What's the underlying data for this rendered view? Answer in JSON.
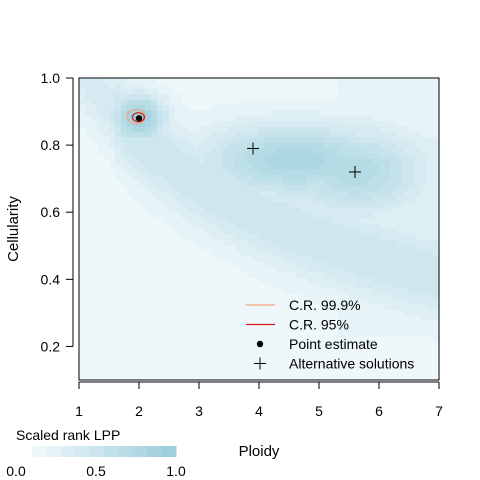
{
  "chart_data": {
    "type": "heatmap",
    "title": "",
    "xlabel": "Ploidy",
    "ylabel": "Cellularity",
    "xlim": [
      1,
      7
    ],
    "ylim": [
      0.1,
      1.0
    ],
    "x_ticks": [
      "1",
      "2",
      "3",
      "4",
      "5",
      "6",
      "7"
    ],
    "y_ticks": [
      "0.2",
      "0.4",
      "0.6",
      "0.8",
      "1.0"
    ],
    "colorbar": {
      "title": "Scaled rank LPP",
      "labels": [
        "0.0",
        "0.5",
        "1.0"
      ],
      "low_color": "#eef7fa",
      "high_color": "#9dcfdc"
    },
    "heat_blobs": [
      {
        "x": 2.0,
        "y": 0.88,
        "peak": 1.0
      },
      {
        "x": 3.9,
        "y": 0.79,
        "peak": 0.9
      },
      {
        "x": 5.6,
        "y": 0.72,
        "peak": 0.9
      }
    ],
    "point_estimate": {
      "x": 2.0,
      "y": 0.88
    },
    "alternative_solutions": [
      {
        "x": 3.9,
        "y": 0.79
      },
      {
        "x": 5.6,
        "y": 0.72
      }
    ],
    "credible_regions": [
      {
        "level": "99.9%",
        "color": "#f4a582",
        "x": 1.95,
        "y": 0.885
      },
      {
        "level": "95%",
        "color": "#d7191c",
        "x": 1.99,
        "y": 0.883
      }
    ],
    "legend": {
      "placement": "bottom-right",
      "entries": [
        {
          "label": "C.R. 99.9%",
          "marker": "line",
          "color": "#f4a582"
        },
        {
          "label": "C.R. 95%",
          "marker": "line",
          "color": "#d7191c"
        },
        {
          "label": "Point estimate",
          "marker": "dot",
          "color": "#000000"
        },
        {
          "label": "Alternative solutions",
          "marker": "plus",
          "color": "#000000"
        }
      ]
    }
  }
}
